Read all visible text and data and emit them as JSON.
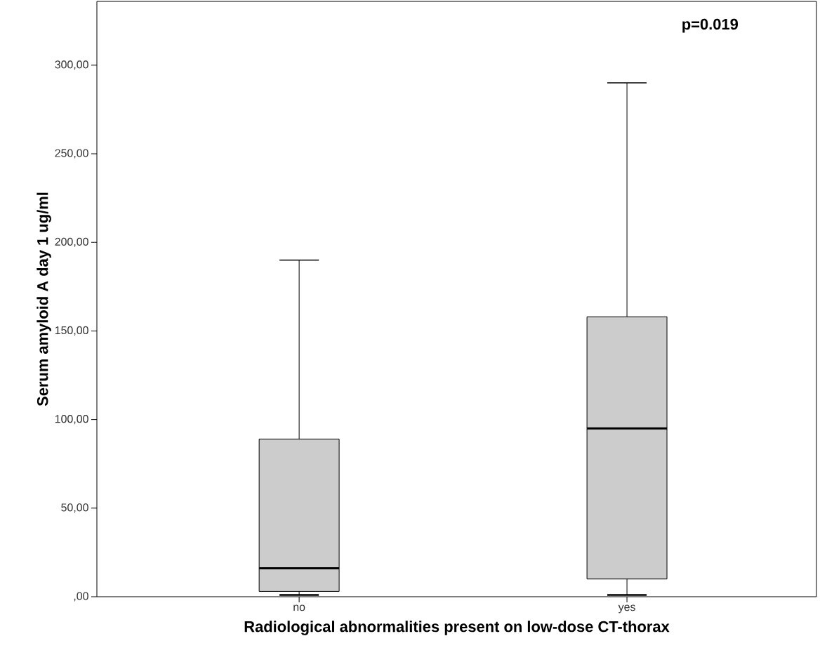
{
  "chart_data": {
    "type": "box",
    "xlabel": "Radiological abnormalities present on low-dose CT-thorax",
    "ylabel": "Serum amyloid A day 1 ug/ml",
    "categories": [
      "no",
      "yes"
    ],
    "color": "#cccccc",
    "boxes": [
      {
        "low": 1,
        "q1": 3,
        "median": 16,
        "q3": 89,
        "high": 190
      },
      {
        "low": 1,
        "q1": 10,
        "median": 95,
        "q3": 158,
        "high": 290
      }
    ],
    "ylim": [
      0,
      336
    ],
    "yticks": [
      {
        "value": 0,
        "label": ",00"
      },
      {
        "value": 50,
        "label": "50,00"
      },
      {
        "value": 100,
        "label": "100,00"
      },
      {
        "value": 150,
        "label": "150,00"
      },
      {
        "value": 200,
        "label": "200,00"
      },
      {
        "value": 250,
        "label": "250,00"
      },
      {
        "value": 300,
        "label": "300,00"
      }
    ],
    "annotations": [
      "p=0.019"
    ]
  }
}
